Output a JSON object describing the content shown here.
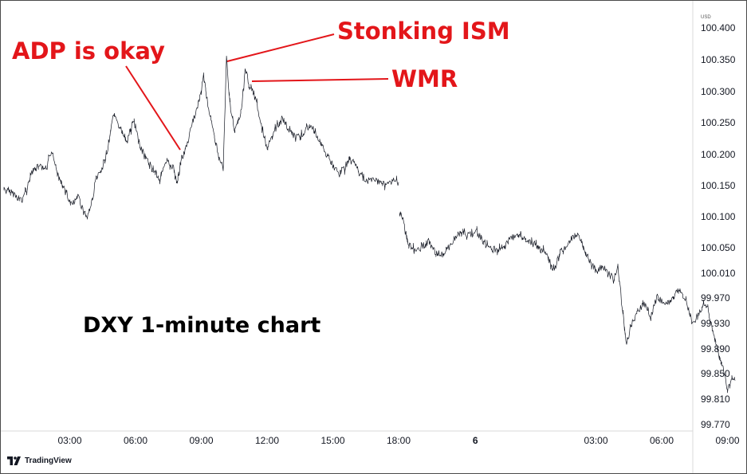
{
  "brand": {
    "logo_text": "TradingView",
    "logo_icon": "tradingview-logo-icon"
  },
  "currency": "USD",
  "chart_data": {
    "type": "line",
    "title": "DXY 1-minute chart",
    "colors": {
      "series": "#131722",
      "annotation": "#e3161a",
      "title": "#000000",
      "axis_text": "#131722"
    },
    "x_ticks": [
      "03:00",
      "06:00",
      "09:00",
      "12:00",
      "15:00",
      "18:00",
      "6",
      "03:00",
      "06:00",
      "09:00"
    ],
    "y_ticks": [
      "100.400",
      "100.350",
      "100.300",
      "100.250",
      "100.200",
      "100.150",
      "100.100",
      "100.050",
      "100.010",
      "99.970",
      "99.930",
      "99.890",
      "99.850",
      "99.810",
      "99.770"
    ],
    "ylim": [
      99.75,
      100.415
    ],
    "x_unit": "hours from 00:00 on day 5",
    "series": [
      {
        "values": [
          [
            0.0,
            100.142
          ],
          [
            0.4,
            100.138
          ],
          [
            0.8,
            100.125
          ],
          [
            1.1,
            100.15
          ],
          [
            1.3,
            100.172
          ],
          [
            1.6,
            100.18
          ],
          [
            1.9,
            100.175
          ],
          [
            2.2,
            100.205
          ],
          [
            2.5,
            100.165
          ],
          [
            2.8,
            100.14
          ],
          [
            3.1,
            100.118
          ],
          [
            3.4,
            100.132
          ],
          [
            3.6,
            100.11
          ],
          [
            3.8,
            100.1
          ],
          [
            4.0,
            100.122
          ],
          [
            4.2,
            100.16
          ],
          [
            4.5,
            100.175
          ],
          [
            4.8,
            100.22
          ],
          [
            5.0,
            100.262
          ],
          [
            5.3,
            100.24
          ],
          [
            5.6,
            100.215
          ],
          [
            5.9,
            100.255
          ],
          [
            6.2,
            100.212
          ],
          [
            6.5,
            100.19
          ],
          [
            6.8,
            100.175
          ],
          [
            7.1,
            100.16
          ],
          [
            7.4,
            100.185
          ],
          [
            7.7,
            100.18
          ],
          [
            7.9,
            100.155
          ],
          [
            8.1,
            100.19
          ],
          [
            8.3,
            100.208
          ],
          [
            8.6,
            100.25
          ],
          [
            8.9,
            100.285
          ],
          [
            9.1,
            100.325
          ],
          [
            9.3,
            100.278
          ],
          [
            9.5,
            100.245
          ],
          [
            9.8,
            100.195
          ],
          [
            10.0,
            100.175
          ],
          [
            10.15,
            100.352
          ],
          [
            10.3,
            100.285
          ],
          [
            10.5,
            100.235
          ],
          [
            10.8,
            100.262
          ],
          [
            11.0,
            100.332
          ],
          [
            11.2,
            100.31
          ],
          [
            11.5,
            100.285
          ],
          [
            11.8,
            100.238
          ],
          [
            12.0,
            100.208
          ],
          [
            12.3,
            100.235
          ],
          [
            12.7,
            100.258
          ],
          [
            13.0,
            100.238
          ],
          [
            13.3,
            100.225
          ],
          [
            13.7,
            100.235
          ],
          [
            14.0,
            100.245
          ],
          [
            14.3,
            100.228
          ],
          [
            14.7,
            100.2
          ],
          [
            15.0,
            100.182
          ],
          [
            15.3,
            100.165
          ],
          [
            15.6,
            100.182
          ],
          [
            15.9,
            100.19
          ],
          [
            16.2,
            100.17
          ],
          [
            16.6,
            100.157
          ],
          [
            17.0,
            100.16
          ],
          [
            17.4,
            100.15
          ],
          [
            17.7,
            100.158
          ],
          [
            18.0,
            100.155
          ]
        ]
      },
      {
        "values": [
          [
            18.05,
            100.108
          ],
          [
            18.2,
            100.095
          ],
          [
            18.4,
            100.06
          ],
          [
            18.7,
            100.045
          ],
          [
            19.0,
            100.05
          ],
          [
            19.4,
            100.062
          ],
          [
            19.7,
            100.042
          ],
          [
            20.0,
            100.04
          ],
          [
            20.3,
            100.052
          ],
          [
            20.6,
            100.068
          ],
          [
            20.9,
            100.078
          ],
          [
            21.2,
            100.07
          ],
          [
            21.5,
            100.08
          ],
          [
            21.8,
            100.062
          ],
          [
            22.1,
            100.055
          ],
          [
            22.5,
            100.045
          ],
          [
            22.8,
            100.052
          ],
          [
            23.1,
            100.065
          ],
          [
            23.5,
            100.075
          ],
          [
            23.8,
            100.06
          ],
          [
            24.1,
            100.058
          ],
          [
            24.4,
            100.052
          ],
          [
            24.8,
            100.035
          ],
          [
            25.1,
            100.012
          ],
          [
            25.4,
            100.045
          ],
          [
            25.8,
            100.06
          ],
          [
            26.1,
            100.075
          ],
          [
            26.4,
            100.055
          ],
          [
            26.7,
            100.03
          ],
          [
            27.0,
            100.015
          ],
          [
            27.4,
            100.02
          ],
          [
            27.8,
            100.0
          ],
          [
            28.0,
            100.025
          ],
          [
            28.2,
            99.955
          ],
          [
            28.4,
            99.895
          ],
          [
            28.6,
            99.93
          ],
          [
            28.9,
            99.948
          ],
          [
            29.2,
            99.965
          ],
          [
            29.5,
            99.94
          ],
          [
            29.8,
            99.975
          ],
          [
            30.1,
            99.96
          ],
          [
            30.5,
            99.97
          ],
          [
            30.8,
            99.985
          ],
          [
            31.1,
            99.97
          ],
          [
            31.4,
            99.928
          ],
          [
            31.7,
            99.948
          ],
          [
            32.0,
            99.965
          ],
          [
            32.2,
            99.94
          ],
          [
            32.4,
            99.905
          ],
          [
            32.6,
            99.88
          ],
          [
            32.8,
            99.86
          ],
          [
            33.0,
            99.825
          ],
          [
            33.2,
            99.845
          ],
          [
            33.35,
            99.84
          ]
        ]
      }
    ],
    "annotations": [
      {
        "text": "ADP is okay",
        "x": 8.1,
        "y": 100.2
      },
      {
        "text": "Stonking ISM",
        "x": 10.2,
        "y": 100.355
      },
      {
        "text": "WMR",
        "x": 11.0,
        "y": 100.315
      }
    ],
    "grid": false
  }
}
